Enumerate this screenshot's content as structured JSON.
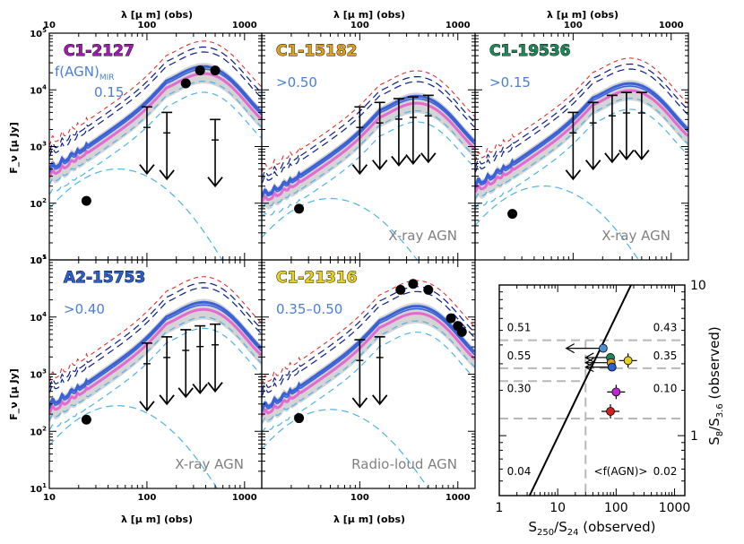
{
  "figure": {
    "top_axis_label": "λ [μ m] (obs)",
    "bottom_axis_label": "λ [μ m] (obs)",
    "y_axis_label": "F_ν [μ Jy]",
    "sed_x_ticks": [
      "10",
      "100",
      "1000"
    ],
    "sed_y_ticks": [
      "10^1",
      "10^2",
      "10^3",
      "10^4",
      "10^5"
    ],
    "fagn_label": "f(AGN)",
    "fagn_label_sub": "MIR"
  },
  "colors": {
    "model_blue": "#3a62d6",
    "model_dark_blue": "#0a1e8a",
    "model_light_blue": "#4db3ea",
    "model_pink": "#e46ad0",
    "model_red": "#e02020",
    "band_gray": "#d4d4d4"
  },
  "panels": [
    {
      "id": "C1-2127",
      "title": "C1-2127",
      "title_color": "#a21caf",
      "agn_text": "0.15",
      "note": "",
      "chart_data": {
        "type": "line",
        "xlim": [
          10,
          1500
        ],
        "ylim": [
          10,
          100000
        ],
        "log_x": true,
        "log_y": true,
        "peak_flux": 20000,
        "detections": [
          {
            "x": 24,
            "y": 110
          },
          {
            "x": 250,
            "y": 13000
          },
          {
            "x": 350,
            "y": 22000
          },
          {
            "x": 500,
            "y": 22000
          }
        ],
        "upper_limits": [
          {
            "x": 100,
            "y": 5000
          },
          {
            "x": 160,
            "y": 4000
          },
          {
            "x": 500,
            "y": 3000
          }
        ]
      }
    },
    {
      "id": "C1-15182",
      "title": "C1-15182",
      "title_color": "#e0a020",
      "agn_text": ">0.50",
      "note": "X-ray AGN",
      "chart_data": {
        "type": "line",
        "xlim": [
          10,
          1500
        ],
        "ylim": [
          10,
          100000
        ],
        "log_x": true,
        "log_y": true,
        "peak_flux": 6000,
        "detections": [
          {
            "x": 24,
            "y": 80
          }
        ],
        "upper_limits": [
          {
            "x": 100,
            "y": 5000
          },
          {
            "x": 160,
            "y": 6000
          },
          {
            "x": 250,
            "y": 7000
          },
          {
            "x": 350,
            "y": 7500
          },
          {
            "x": 500,
            "y": 8000
          }
        ]
      }
    },
    {
      "id": "C1-19536",
      "title": "C1-19536",
      "title_color": "#1e8a5a",
      "agn_text": ">0.15",
      "note": "X-ray AGN",
      "chart_data": {
        "type": "line",
        "xlim": [
          10,
          1500
        ],
        "ylim": [
          10,
          100000
        ],
        "log_x": true,
        "log_y": true,
        "peak_flux": 10000,
        "detections": [
          {
            "x": 24,
            "y": 65
          }
        ],
        "upper_limits": [
          {
            "x": 100,
            "y": 4000
          },
          {
            "x": 160,
            "y": 6000
          },
          {
            "x": 250,
            "y": 8000
          },
          {
            "x": 350,
            "y": 9000
          },
          {
            "x": 500,
            "y": 9000
          }
        ]
      }
    },
    {
      "id": "A2-15753",
      "title": "A2-15753",
      "title_color": "#2a5fd0",
      "agn_text": ">0.40",
      "note": "X-ray AGN",
      "chart_data": {
        "type": "line",
        "xlim": [
          10,
          1500
        ],
        "ylim": [
          10,
          100000
        ],
        "log_x": true,
        "log_y": true,
        "peak_flux": 14000,
        "detections": [
          {
            "x": 24,
            "y": 160
          }
        ],
        "upper_limits": [
          {
            "x": 100,
            "y": 3500
          },
          {
            "x": 160,
            "y": 4500
          },
          {
            "x": 250,
            "y": 6000
          },
          {
            "x": 350,
            "y": 7000
          },
          {
            "x": 500,
            "y": 7500
          }
        ]
      }
    },
    {
      "id": "C1-21316",
      "title": "C1-21316",
      "title_color": "#e8d020",
      "agn_text": "0.35–0.50",
      "note": "Radio-loud AGN",
      "chart_data": {
        "type": "line",
        "xlim": [
          10,
          1500
        ],
        "ylim": [
          10,
          100000
        ],
        "log_x": true,
        "log_y": true,
        "peak_flux": 12000,
        "detections": [
          {
            "x": 24,
            "y": 170
          },
          {
            "x": 260,
            "y": 30000
          },
          {
            "x": 350,
            "y": 38000
          },
          {
            "x": 500,
            "y": 30000
          },
          {
            "x": 850,
            "y": 9500
          },
          {
            "x": 1000,
            "y": 7000
          },
          {
            "x": 1100,
            "y": 5500
          }
        ],
        "upper_limits": [
          {
            "x": 100,
            "y": 4000
          },
          {
            "x": 160,
            "y": 4500
          }
        ]
      }
    }
  ],
  "scatter_panel": {
    "chart_data": {
      "type": "scatter",
      "xlabel_main": "S",
      "xlabel_sub1": "250",
      "xlabel_div": "/S",
      "xlabel_sub2": "24",
      "xlabel_tail": " (observed)",
      "ylabel_main": "S",
      "ylabel_sub1": "8",
      "ylabel_div": "/S",
      "ylabel_sub2": "3.6",
      "ylabel_tail": " (observed)",
      "xlim": [
        1,
        1500
      ],
      "ylim": [
        0.4,
        10
      ],
      "log_x": true,
      "log_y": true,
      "x_ticks": [
        "1",
        "10",
        "100",
        "1000"
      ],
      "y_ticks": [
        "1",
        "10"
      ],
      "grid_x_lines": [
        30
      ],
      "grid_y_lines": [
        4.3,
        2.8,
        1.3
      ],
      "grid_y_dashed_short_at": [
        2.3
      ],
      "cell_values": [
        {
          "text": "0.51"
        },
        {
          "text": "0.43"
        },
        {
          "text": "0.55"
        },
        {
          "text": "0.35"
        },
        {
          "text": "0.30"
        },
        {
          "text": "0.10"
        },
        {
          "text": "0.04"
        },
        {
          "text": "0.02"
        }
      ],
      "legend_text": "<f(AGN)>",
      "line": {
        "x1": 3.3,
        "y1": 0.4,
        "x2": 180,
        "y2": 10
      },
      "points": [
        {
          "x": 60,
          "y": 3.8,
          "color": "#4a90d9",
          "upper_limit_x": true,
          "arrow_to": 14
        },
        {
          "x": 80,
          "y": 3.3,
          "color": "#1e8a5a",
          "upper_limit_x": true,
          "arrow_to": 30
        },
        {
          "x": 82,
          "y": 3.05,
          "color": "#e0a020",
          "upper_limit_x": true,
          "arrow_to": 30
        },
        {
          "x": 85,
          "y": 2.85,
          "color": "#2a5fd0",
          "upper_limit_x": true,
          "arrow_to": 30
        },
        {
          "x": 160,
          "y": 3.15,
          "color": "#e8d020",
          "upper_limit_x": false
        },
        {
          "x": 100,
          "y": 1.95,
          "color": "#c026d3",
          "upper_limit_x": false
        },
        {
          "x": 80,
          "y": 1.45,
          "color": "#d42020",
          "upper_limit_x": false
        }
      ]
    }
  }
}
